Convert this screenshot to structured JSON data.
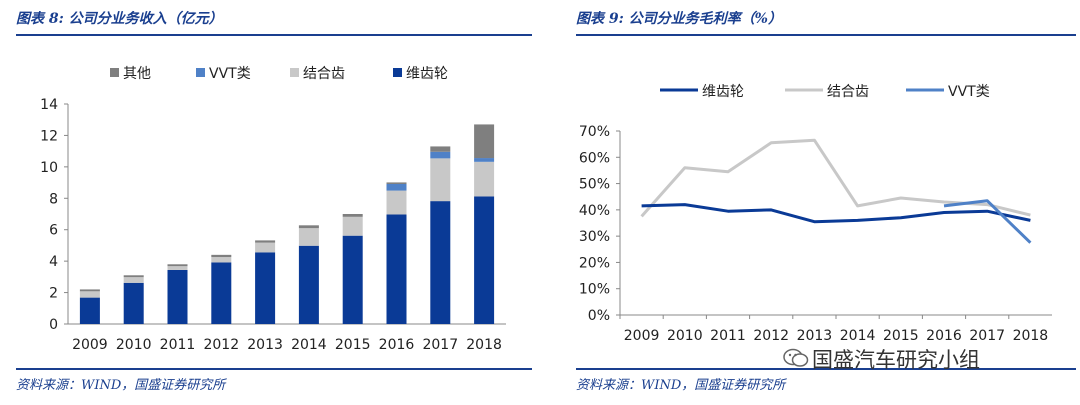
{
  "watermark": {
    "text": "国盛汽车研究小组",
    "icon": "wechat-icon"
  },
  "chart_data": [
    {
      "type": "bar",
      "stacked": true,
      "title": "图表 8:  公司分业务收入（亿元）",
      "source": "资料来源：WIND，国盛证券研究所",
      "categories": [
        "2009",
        "2010",
        "2011",
        "2012",
        "2013",
        "2014",
        "2015",
        "2016",
        "2017",
        "2018"
      ],
      "ylim": [
        0,
        14
      ],
      "yticks": [
        "0",
        "2",
        "4",
        "6",
        "8",
        "10",
        "12",
        "14"
      ],
      "legend_position": "top",
      "series": [
        {
          "name": "维齿轮",
          "color": "#0a3a96",
          "values": [
            1.68,
            2.62,
            3.44,
            3.92,
            4.56,
            4.98,
            5.62,
            6.97,
            7.82,
            8.12
          ]
        },
        {
          "name": "结合齿",
          "color": "#c8c8c8",
          "values": [
            0.4,
            0.36,
            0.24,
            0.34,
            0.62,
            1.12,
            1.2,
            1.52,
            2.72,
            2.2
          ]
        },
        {
          "name": "VVT类",
          "color": "#4f81c7",
          "values": [
            0.0,
            0.0,
            0.0,
            0.0,
            0.0,
            0.0,
            0.0,
            0.42,
            0.42,
            0.24
          ]
        },
        {
          "name": "其他",
          "color": "#7f7f7f",
          "values": [
            0.12,
            0.12,
            0.12,
            0.14,
            0.14,
            0.18,
            0.18,
            0.1,
            0.34,
            2.14
          ]
        }
      ],
      "legend_order": [
        3,
        2,
        1,
        0
      ]
    },
    {
      "type": "line",
      "title": "图表 9:  公司分业务毛利率（%）",
      "source": "资料来源：WIND，国盛证券研究所",
      "categories": [
        "2009",
        "2010",
        "2011",
        "2012",
        "2013",
        "2014",
        "2015",
        "2016",
        "2017",
        "2018"
      ],
      "ylim": [
        0,
        70
      ],
      "yticks": [
        "0%",
        "10%",
        "20%",
        "30%",
        "40%",
        "50%",
        "60%",
        "70%"
      ],
      "legend_position": "top",
      "series": [
        {
          "name": "维齿轮",
          "color": "#0a3a96",
          "values": [
            41.5,
            42,
            39.5,
            40,
            35.5,
            36,
            37,
            39,
            39.5,
            36
          ]
        },
        {
          "name": "结合齿",
          "color": "#c8c8c8",
          "values": [
            37.5,
            56,
            54.5,
            65.5,
            66.5,
            41.5,
            44.5,
            43,
            42,
            38
          ]
        },
        {
          "name": "VVT类",
          "color": "#4f81c7",
          "values": [
            null,
            null,
            null,
            null,
            null,
            null,
            null,
            41.5,
            43.5,
            27.5
          ]
        }
      ]
    }
  ]
}
